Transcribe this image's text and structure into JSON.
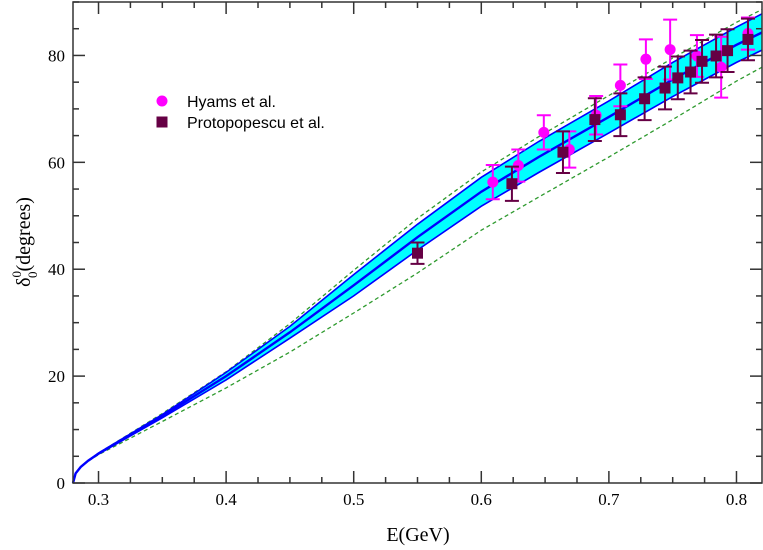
{
  "chart_data": {
    "type": "scatter",
    "xlabel": "E(GeV)",
    "ylabel": {
      "symbol": "δ",
      "sup": "0",
      "sub": "0",
      "unit": "(degrees)"
    },
    "xlim": [
      0.28,
      0.82
    ],
    "ylim": [
      0,
      90
    ],
    "x_ticks": [
      0.3,
      0.4,
      0.5,
      0.6,
      0.7,
      0.8
    ],
    "x_tick_labels": [
      "0.3",
      "0.4",
      "0.5",
      "0.6",
      "0.7",
      "0.8"
    ],
    "y_ticks": [
      0,
      20,
      40,
      60,
      80
    ],
    "y_tick_labels": [
      "0",
      "20",
      "40",
      "60",
      "80"
    ],
    "x_minor_step": 0.025,
    "y_minor_step": 5,
    "grid": false,
    "legend_position": "top-left",
    "colors": {
      "band": "#00ffff",
      "band_edge": "#0000ff",
      "central": "#0000ff",
      "dashed": "#2e9a2e",
      "hyams": "#ff00ff",
      "protopopescu": "#660044"
    },
    "curves": {
      "central": [
        [
          0.28,
          0
        ],
        [
          0.282,
          1.8
        ],
        [
          0.286,
          3
        ],
        [
          0.292,
          4.2
        ],
        [
          0.3,
          5.5
        ],
        [
          0.35,
          12.5
        ],
        [
          0.4,
          20
        ],
        [
          0.45,
          28.2
        ],
        [
          0.5,
          37
        ],
        [
          0.55,
          46
        ],
        [
          0.6,
          54.5
        ],
        [
          0.645,
          61
        ],
        [
          0.7,
          68.5
        ],
        [
          0.75,
          75.5
        ],
        [
          0.8,
          82
        ],
        [
          0.82,
          84.3
        ]
      ],
      "band_upper": [
        [
          0.28,
          0
        ],
        [
          0.282,
          1.8
        ],
        [
          0.286,
          3
        ],
        [
          0.292,
          4.2
        ],
        [
          0.3,
          5.6
        ],
        [
          0.35,
          12.8
        ],
        [
          0.4,
          20.7
        ],
        [
          0.45,
          29.3
        ],
        [
          0.5,
          39
        ],
        [
          0.55,
          48.4
        ],
        [
          0.6,
          57.2
        ],
        [
          0.645,
          63.9
        ],
        [
          0.7,
          71.5
        ],
        [
          0.75,
          78.7
        ],
        [
          0.8,
          85.3
        ],
        [
          0.82,
          87.8
        ]
      ],
      "band_lower": [
        [
          0.28,
          0
        ],
        [
          0.282,
          1.8
        ],
        [
          0.286,
          3
        ],
        [
          0.292,
          4.2
        ],
        [
          0.3,
          5.4
        ],
        [
          0.35,
          12.2
        ],
        [
          0.4,
          19.3
        ],
        [
          0.45,
          27.1
        ],
        [
          0.5,
          35
        ],
        [
          0.55,
          43.6
        ],
        [
          0.6,
          51.8
        ],
        [
          0.645,
          58.1
        ],
        [
          0.7,
          65.5
        ],
        [
          0.75,
          72.3
        ],
        [
          0.8,
          78.7
        ],
        [
          0.82,
          81
        ]
      ],
      "dashed_upper": [
        [
          0.28,
          0
        ],
        [
          0.282,
          1.8
        ],
        [
          0.286,
          3
        ],
        [
          0.292,
          4.2
        ],
        [
          0.3,
          5.6
        ],
        [
          0.35,
          13
        ],
        [
          0.4,
          20.8
        ],
        [
          0.45,
          29.8
        ],
        [
          0.5,
          39.8
        ],
        [
          0.55,
          49.5
        ],
        [
          0.6,
          58.2
        ],
        [
          0.645,
          64.8
        ],
        [
          0.7,
          72.5
        ],
        [
          0.75,
          79.5
        ],
        [
          0.8,
          86.2
        ],
        [
          0.82,
          88.6
        ]
      ],
      "dashed_lower": [
        [
          0.28,
          0
        ],
        [
          0.282,
          1.8
        ],
        [
          0.286,
          3
        ],
        [
          0.292,
          4.1
        ],
        [
          0.3,
          5.3
        ],
        [
          0.35,
          11.5
        ],
        [
          0.4,
          17.8
        ],
        [
          0.45,
          24.5
        ],
        [
          0.5,
          31.8
        ],
        [
          0.55,
          39.3
        ],
        [
          0.6,
          47.3
        ],
        [
          0.645,
          53.5
        ],
        [
          0.7,
          61
        ],
        [
          0.75,
          68
        ],
        [
          0.8,
          75.2
        ],
        [
          0.82,
          77.8
        ]
      ]
    },
    "series": [
      {
        "name": "Hyams et al.",
        "marker": "circle",
        "points": [
          {
            "x": 0.609,
            "y": 56.3,
            "err": 3.2
          },
          {
            "x": 0.629,
            "y": 59.4,
            "err": 3.0
          },
          {
            "x": 0.649,
            "y": 65.6,
            "err": 3.2
          },
          {
            "x": 0.669,
            "y": 62.4,
            "err": 3.4
          },
          {
            "x": 0.69,
            "y": 68.8,
            "err": 3.6
          },
          {
            "x": 0.709,
            "y": 74.4,
            "err": 3.9
          },
          {
            "x": 0.729,
            "y": 79.3,
            "err": 3.7
          },
          {
            "x": 0.748,
            "y": 81.1,
            "err": 5.6
          },
          {
            "x": 0.769,
            "y": 79.9,
            "err": 3.9
          },
          {
            "x": 0.788,
            "y": 77.8,
            "err": 5.7
          },
          {
            "x": 0.809,
            "y": 84.1,
            "err": 3.0
          }
        ]
      },
      {
        "name": "Protopopescu et al.",
        "marker": "square",
        "points": [
          {
            "x": 0.55,
            "y": 43.0,
            "err": 2.0
          },
          {
            "x": 0.624,
            "y": 56.0,
            "err": 3.2
          },
          {
            "x": 0.664,
            "y": 61.9,
            "err": 3.9
          },
          {
            "x": 0.689,
            "y": 68.0,
            "err": 4.0
          },
          {
            "x": 0.709,
            "y": 68.9,
            "err": 4.0
          },
          {
            "x": 0.728,
            "y": 71.9,
            "err": 4.0
          },
          {
            "x": 0.744,
            "y": 73.9,
            "err": 4.0
          },
          {
            "x": 0.754,
            "y": 75.8,
            "err": 4.0
          },
          {
            "x": 0.764,
            "y": 76.9,
            "err": 4.0
          },
          {
            "x": 0.773,
            "y": 78.9,
            "err": 4.0
          },
          {
            "x": 0.784,
            "y": 79.9,
            "err": 4.0
          },
          {
            "x": 0.793,
            "y": 80.9,
            "err": 4.0
          },
          {
            "x": 0.809,
            "y": 83.0,
            "err": 3.9
          }
        ]
      }
    ]
  }
}
